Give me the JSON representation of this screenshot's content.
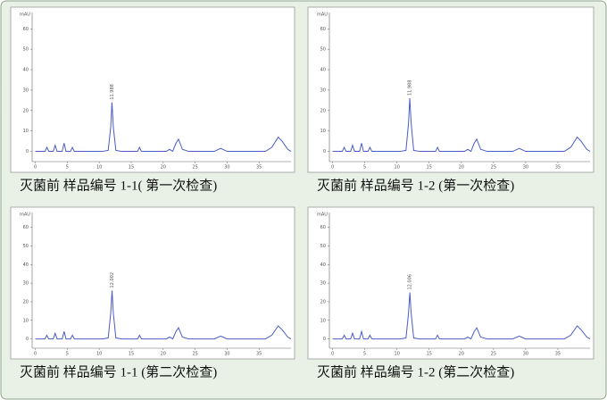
{
  "chart_data": [
    {
      "type": "line",
      "title": "灭菌前 样品编号 1-1( 第一次检查)",
      "y_label": "mAU",
      "xlim": [
        -0.5,
        40
      ],
      "ylim": [
        -5,
        68
      ],
      "xticks": [
        0,
        5,
        10,
        15,
        20,
        25,
        30,
        35
      ],
      "yticks": [
        0,
        10,
        20,
        30,
        40,
        50,
        60
      ],
      "x": [
        0,
        1.5,
        1.8,
        2.1,
        2.8,
        3.1,
        3.4,
        4.2,
        4.5,
        4.8,
        5.5,
        5.8,
        6.1,
        10.5,
        11.4,
        11.8,
        11.988,
        12.2,
        12.6,
        13.5,
        16,
        16.3,
        16.6,
        20.5,
        21,
        21.5,
        22,
        22.4,
        23,
        24,
        28,
        29,
        30,
        36,
        37,
        38,
        38.6,
        39.5,
        40
      ],
      "series": [
        {
          "color": "#4a5bc8",
          "values": [
            0,
            0,
            2,
            0,
            0,
            3,
            0,
            0,
            4,
            0,
            0,
            2,
            0,
            0,
            0.5,
            12,
            24,
            12,
            0.5,
            0,
            0,
            2,
            0,
            0,
            1,
            0,
            4,
            6,
            1,
            0,
            0,
            1.5,
            0,
            0,
            2,
            7,
            5,
            1,
            0
          ]
        }
      ],
      "annotations": [
        {
          "text": "11.988",
          "x": 11.988,
          "y": 24
        }
      ]
    },
    {
      "type": "line",
      "title": "灭菌前 样品编号 1-2 (第一次检查)",
      "y_label": "mAU",
      "xlim": [
        -0.5,
        40
      ],
      "ylim": [
        -5,
        68
      ],
      "xticks": [
        0,
        5,
        10,
        15,
        20,
        25,
        30,
        35
      ],
      "yticks": [
        0,
        10,
        20,
        30,
        40,
        50,
        60
      ],
      "x": [
        0,
        1.5,
        1.8,
        2.1,
        2.8,
        3.1,
        3.4,
        4.2,
        4.5,
        4.8,
        5.5,
        5.8,
        6.1,
        10.5,
        11.4,
        11.8,
        11.988,
        12.2,
        12.6,
        13.5,
        16,
        16.3,
        16.6,
        20.5,
        21,
        21.5,
        22,
        22.4,
        23,
        24,
        28,
        29,
        30,
        36,
        37,
        38,
        38.6,
        39.5,
        40
      ],
      "series": [
        {
          "color": "#4a5bc8",
          "values": [
            0,
            0,
            2,
            0,
            0,
            3,
            0,
            0,
            4,
            0,
            0,
            2,
            0,
            0,
            0.5,
            14,
            26,
            14,
            0.5,
            0,
            0,
            2,
            0,
            0,
            1,
            0,
            4,
            6,
            1,
            0,
            0,
            1.5,
            0,
            0,
            2,
            7,
            5,
            1,
            0
          ]
        }
      ],
      "annotations": [
        {
          "text": "11.988",
          "x": 11.988,
          "y": 26
        }
      ]
    },
    {
      "type": "line",
      "title": "灭菌前 样品编号 1-1 (第二次检查)",
      "y_label": "mAU",
      "xlim": [
        -0.5,
        40
      ],
      "ylim": [
        -5,
        68
      ],
      "xticks": [
        0,
        5,
        10,
        15,
        20,
        25,
        30,
        35
      ],
      "yticks": [
        0,
        10,
        20,
        30,
        40,
        50,
        60
      ],
      "x": [
        0,
        1.5,
        1.8,
        2.1,
        2.8,
        3.1,
        3.4,
        4.2,
        4.5,
        4.8,
        5.5,
        5.8,
        6.1,
        10.5,
        11.4,
        11.8,
        12.002,
        12.2,
        12.6,
        13.5,
        16,
        16.3,
        16.6,
        20.5,
        21,
        21.5,
        22,
        22.4,
        23,
        24,
        28,
        29,
        30,
        36,
        37,
        38,
        38.6,
        39.5,
        40
      ],
      "series": [
        {
          "color": "#4a5bc8",
          "values": [
            0,
            0,
            2,
            0,
            0,
            3,
            0,
            0,
            4,
            0,
            0,
            2,
            0,
            0,
            0.5,
            14,
            26,
            14,
            0.5,
            0,
            0,
            2,
            0,
            0,
            1,
            0,
            4,
            6,
            1,
            0,
            0,
            1.5,
            0,
            0,
            2,
            7,
            5,
            1,
            0
          ]
        }
      ],
      "annotations": [
        {
          "text": "12.002",
          "x": 12.002,
          "y": 26
        }
      ]
    },
    {
      "type": "line",
      "title": "灭菌前 样品编号 1-2 (第二次检查)",
      "y_label": "mAU",
      "xlim": [
        -0.5,
        40
      ],
      "ylim": [
        -5,
        68
      ],
      "xticks": [
        0,
        5,
        10,
        15,
        20,
        25,
        30,
        35
      ],
      "yticks": [
        0,
        10,
        20,
        30,
        40,
        50,
        60
      ],
      "x": [
        0,
        1.5,
        1.8,
        2.1,
        2.8,
        3.1,
        3.4,
        4.2,
        4.5,
        4.8,
        5.5,
        5.8,
        6.1,
        10.5,
        11.4,
        11.8,
        12.006,
        12.2,
        12.6,
        13.5,
        16,
        16.3,
        16.6,
        20.5,
        21,
        21.5,
        22,
        22.4,
        23,
        24,
        28,
        29,
        30,
        36,
        37,
        38,
        38.6,
        39.5,
        40
      ],
      "series": [
        {
          "color": "#4a5bc8",
          "values": [
            0,
            0,
            2,
            0,
            0,
            3,
            0,
            0,
            4,
            0,
            0,
            2,
            0,
            0,
            0.5,
            14,
            25,
            14,
            0.5,
            0,
            0,
            2,
            0,
            0,
            1,
            0,
            4,
            6,
            1,
            0,
            0,
            1.5,
            0,
            0,
            2,
            7,
            5,
            1,
            0
          ]
        }
      ],
      "annotations": [
        {
          "text": "12.006",
          "x": 12.006,
          "y": 25
        }
      ]
    }
  ]
}
